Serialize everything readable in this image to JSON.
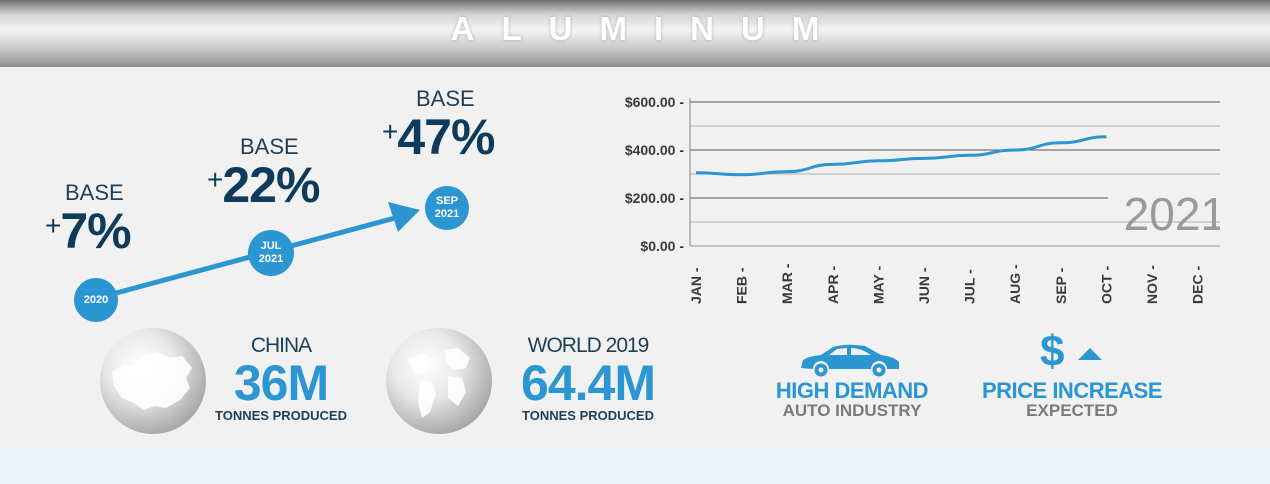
{
  "banner": {
    "title": "ALUMINUM"
  },
  "growth": [
    {
      "label": "BASE",
      "plus": "+",
      "pct": "7%",
      "date_line1": "2020",
      "date_line2": ""
    },
    {
      "label": "BASE",
      "plus": "+",
      "pct": "22%",
      "date_line1": "JUL",
      "date_line2": "2021"
    },
    {
      "label": "BASE",
      "plus": "+",
      "pct": "47%",
      "date_line1": "SEP",
      "date_line2": "2021"
    }
  ],
  "stats": [
    {
      "label": "CHINA",
      "value": "36M",
      "sub": "TONNES PRODUCED"
    },
    {
      "label": "WORLD 2019",
      "value": "64.4M",
      "sub": "TONNES PRODUCED"
    }
  ],
  "features": [
    {
      "title": "HIGH DEMAND",
      "sub": "AUTO INDUSTRY",
      "icon": "car-icon"
    },
    {
      "title": "PRICE INCREASE",
      "sub": "EXPECTED",
      "icon": "dollar-up-icon",
      "symbol": "$"
    }
  ],
  "colors": {
    "accent": "#2b96d1",
    "navy": "#0e3a5c",
    "gray_text": "#7b7b7b"
  },
  "chart_data": {
    "type": "line",
    "title": "",
    "xlabel": "",
    "ylabel": "",
    "year_label": "2021",
    "categories": [
      "JAN",
      "FEB",
      "MAR",
      "APR",
      "MAY",
      "JUN",
      "JUL",
      "AUG",
      "SEP",
      "OCT",
      "NOV",
      "DEC"
    ],
    "y_ticks": [
      "$0.00",
      "$200.00",
      "$400.00",
      "$600.00"
    ],
    "y_tick_values": [
      0,
      200,
      400,
      600
    ],
    "ylim": [
      0,
      600
    ],
    "grid": true,
    "series": [
      {
        "values": [
          305,
          297,
          310,
          340,
          355,
          365,
          378,
          400,
          430,
          455,
          null,
          null
        ]
      }
    ]
  }
}
